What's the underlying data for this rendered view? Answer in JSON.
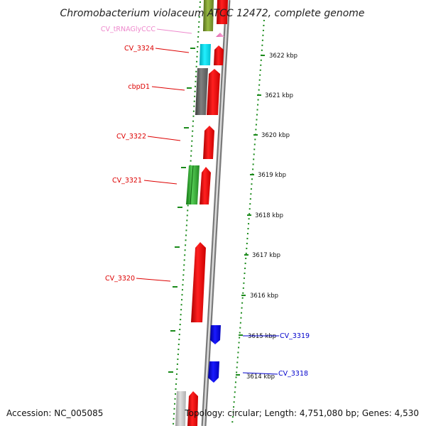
{
  "title": "Chromobacterium violaceum ATCC 12472, complete genome",
  "accession_text": "Accession: NC_005085",
  "summary_text": "Topology: circular; Length: 4,751,080 bp; Genes: 4,530",
  "ruler_labels": [
    "3622 kbp",
    "3621 kbp",
    "3620 kbp",
    "3619 kbp",
    "3618 kbp",
    "3617 kbp",
    "3616 kbp",
    "3615 kbp",
    "3614 kbp"
  ],
  "genes": [
    {
      "name": "CV_tRNAGlyCCC",
      "color": "#ee88cc"
    },
    {
      "name": "CV_3324",
      "color": "#dd0000"
    },
    {
      "name": "cbpD1",
      "color": "#dd0000"
    },
    {
      "name": "CV_3322",
      "color": "#dd0000"
    },
    {
      "name": "CV_3321",
      "color": "#dd0000"
    },
    {
      "name": "CV_3320",
      "color": "#dd0000"
    },
    {
      "name": "CV_3319",
      "color": "#0000cc"
    },
    {
      "name": "CV_3318",
      "color": "#0000cc"
    }
  ],
  "colors": {
    "forward_cds": "#ff1010",
    "reverse_cds": "#0a0aee",
    "cog_cyan": "#00d8e8",
    "cog_gray": "#666666",
    "cog_green": "#33aa33",
    "cog_olive": "#77992a",
    "trna": "#ff88cc",
    "ruler": "#1a8a1a",
    "backbone": "#909090"
  }
}
